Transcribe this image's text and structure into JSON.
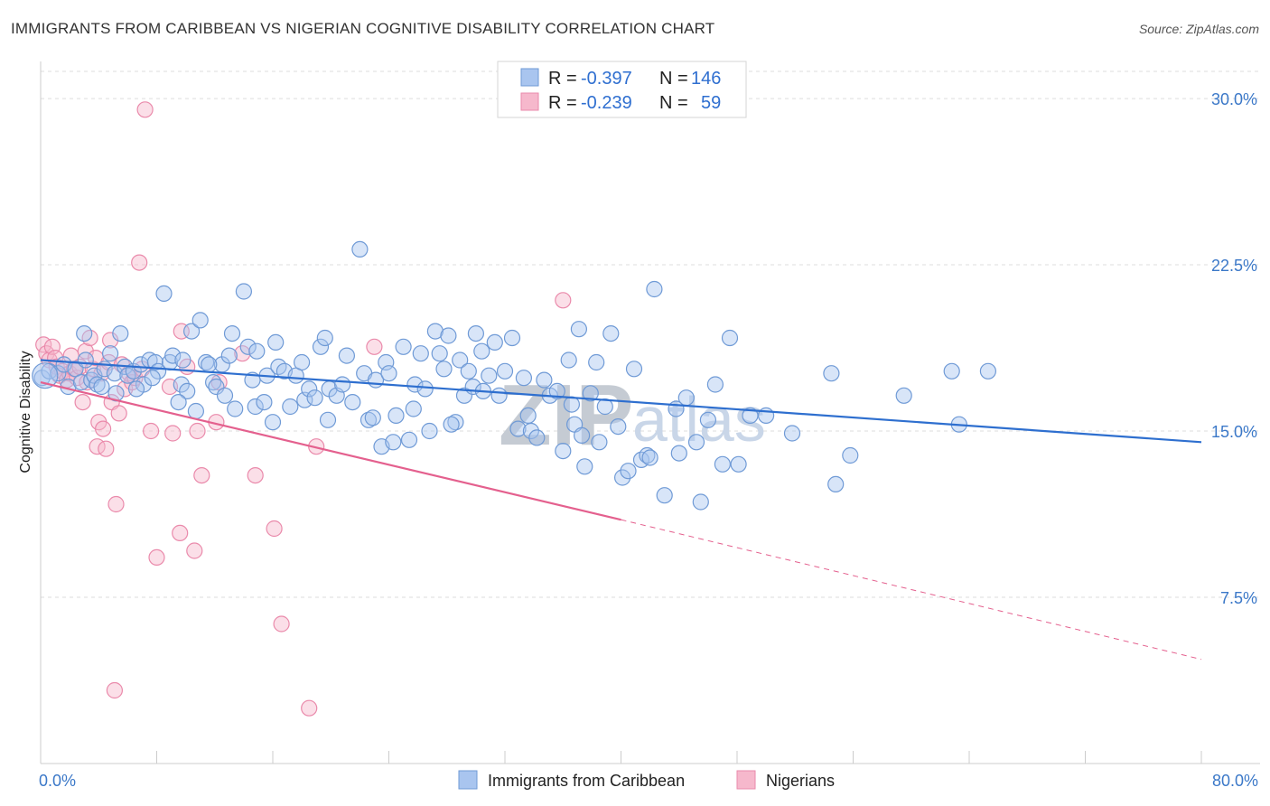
{
  "title": "IMMIGRANTS FROM CARIBBEAN VS NIGERIAN COGNITIVE DISABILITY CORRELATION CHART",
  "source": "Source: ZipAtlas.com",
  "watermark": {
    "zip": "ZIP",
    "atlas": "atlas"
  },
  "colors": {
    "blue_fill": "#a9c5ef",
    "blue_stroke": "#6f9ad6",
    "blue_line": "#2e6fcf",
    "pink_fill": "#f6b8cc",
    "pink_stroke": "#ea8aab",
    "pink_line": "#e4608e",
    "tick_text": "#3b78c8",
    "grid": "#dddddd"
  },
  "legend": {
    "rows": [
      {
        "r_label": "R =",
        "r_value": "-0.397",
        "n_label": "N =",
        "n_value": "146"
      },
      {
        "r_label": "R =",
        "r_value": "-0.239",
        "n_label": "N =",
        "n_value": "59"
      }
    ]
  },
  "bottom_legend": [
    "Immigrants from Caribbean",
    "Nigerians"
  ],
  "chart_data": {
    "type": "scatter",
    "ylabel": "Cognitive Disability",
    "xlim": [
      0,
      80
    ],
    "ylim": [
      0,
      32
    ],
    "y_ticks": [
      {
        "value": 7.5,
        "label": "7.5%"
      },
      {
        "value": 15.0,
        "label": "15.0%"
      },
      {
        "value": 22.5,
        "label": "22.5%"
      },
      {
        "value": 30.0,
        "label": "30.0%"
      }
    ],
    "x_tick_labels": [
      {
        "value": 0,
        "label": "0.0%"
      },
      {
        "value": 80,
        "label": "80.0%"
      }
    ],
    "x_minor_ticks": [
      0,
      8,
      16,
      24,
      32,
      40,
      48,
      56,
      64,
      72,
      80
    ],
    "grid": true,
    "series": [
      {
        "name": "Immigrants from Caribbean",
        "r": -0.397,
        "n": 146,
        "trend": {
          "x0": 0,
          "y0": 18.2,
          "x1": 80,
          "y1": 14.5
        },
        "points": [
          [
            0.1,
            17.4
          ],
          [
            0.6,
            17.7
          ],
          [
            1.2,
            17.6
          ],
          [
            1.6,
            18.0
          ],
          [
            1.9,
            17.0
          ],
          [
            2.4,
            17.8
          ],
          [
            2.8,
            17.2
          ],
          [
            3.1,
            18.2
          ],
          [
            3.0,
            19.4
          ],
          [
            3.5,
            17.3
          ],
          [
            3.7,
            17.5
          ],
          [
            3.9,
            17.1
          ],
          [
            4.2,
            17.0
          ],
          [
            4.4,
            17.8
          ],
          [
            5.1,
            17.6
          ],
          [
            5.2,
            16.7
          ],
          [
            5.5,
            19.4
          ],
          [
            5.8,
            17.9
          ],
          [
            6.0,
            17.5
          ],
          [
            6.4,
            17.7
          ],
          [
            6.9,
            18.0
          ],
          [
            7.1,
            17.1
          ],
          [
            7.5,
            18.2
          ],
          [
            7.9,
            18.1
          ],
          [
            8.1,
            17.7
          ],
          [
            8.5,
            21.2
          ],
          [
            8.9,
            18.1
          ],
          [
            9.1,
            18.4
          ],
          [
            9.7,
            17.1
          ],
          [
            9.8,
            18.2
          ],
          [
            10.1,
            16.8
          ],
          [
            10.4,
            19.5
          ],
          [
            10.7,
            15.9
          ],
          [
            11.0,
            20.0
          ],
          [
            11.4,
            18.1
          ],
          [
            11.9,
            17.2
          ],
          [
            12.1,
            17.0
          ],
          [
            12.5,
            18.0
          ],
          [
            13.0,
            18.4
          ],
          [
            13.2,
            19.4
          ],
          [
            13.4,
            16.0
          ],
          [
            14.0,
            21.3
          ],
          [
            14.3,
            18.8
          ],
          [
            14.8,
            16.1
          ],
          [
            14.9,
            18.6
          ],
          [
            15.4,
            16.3
          ],
          [
            15.6,
            17.5
          ],
          [
            16.0,
            15.4
          ],
          [
            16.4,
            17.9
          ],
          [
            16.8,
            17.7
          ],
          [
            17.2,
            16.1
          ],
          [
            17.6,
            17.5
          ],
          [
            18.0,
            18.1
          ],
          [
            18.2,
            16.4
          ],
          [
            18.5,
            16.9
          ],
          [
            18.9,
            16.5
          ],
          [
            19.3,
            18.8
          ],
          [
            19.6,
            19.2
          ],
          [
            19.9,
            16.9
          ],
          [
            20.4,
            16.6
          ],
          [
            20.8,
            17.1
          ],
          [
            21.1,
            18.4
          ],
          [
            21.5,
            16.3
          ],
          [
            22.0,
            23.2
          ],
          [
            22.3,
            17.6
          ],
          [
            22.6,
            15.5
          ],
          [
            23.1,
            17.3
          ],
          [
            23.5,
            14.3
          ],
          [
            23.8,
            18.1
          ],
          [
            24.0,
            17.6
          ],
          [
            24.3,
            14.5
          ],
          [
            24.5,
            15.7
          ],
          [
            25.0,
            18.8
          ],
          [
            25.4,
            14.6
          ],
          [
            25.8,
            17.1
          ],
          [
            26.2,
            18.5
          ],
          [
            26.5,
            16.9
          ],
          [
            26.8,
            15.0
          ],
          [
            27.2,
            19.5
          ],
          [
            27.5,
            18.5
          ],
          [
            27.8,
            17.8
          ],
          [
            28.1,
            19.3
          ],
          [
            28.6,
            15.4
          ],
          [
            28.9,
            18.2
          ],
          [
            29.2,
            16.6
          ],
          [
            29.5,
            17.7
          ],
          [
            30.0,
            19.4
          ],
          [
            30.4,
            18.6
          ],
          [
            30.9,
            17.5
          ],
          [
            31.3,
            19.0
          ],
          [
            31.6,
            16.6
          ],
          [
            32.0,
            17.7
          ],
          [
            32.5,
            19.2
          ],
          [
            32.9,
            15.1
          ],
          [
            33.3,
            17.4
          ],
          [
            33.8,
            15.0
          ],
          [
            34.2,
            14.7
          ],
          [
            34.7,
            17.3
          ],
          [
            35.1,
            16.6
          ],
          [
            35.6,
            16.8
          ],
          [
            36.0,
            14.1
          ],
          [
            36.4,
            18.2
          ],
          [
            36.8,
            15.3
          ],
          [
            37.1,
            19.6
          ],
          [
            37.5,
            13.4
          ],
          [
            37.9,
            16.7
          ],
          [
            38.3,
            18.1
          ],
          [
            38.9,
            16.1
          ],
          [
            39.3,
            19.4
          ],
          [
            39.8,
            15.2
          ],
          [
            40.1,
            12.9
          ],
          [
            40.5,
            13.2
          ],
          [
            40.9,
            17.8
          ],
          [
            41.4,
            13.7
          ],
          [
            41.8,
            13.9
          ],
          [
            42.3,
            21.4
          ],
          [
            43.0,
            12.1
          ],
          [
            44.5,
            16.5
          ],
          [
            45.2,
            14.5
          ],
          [
            45.5,
            11.8
          ],
          [
            46.0,
            15.5
          ],
          [
            46.5,
            17.1
          ],
          [
            47.0,
            13.5
          ],
          [
            47.5,
            19.2
          ],
          [
            48.1,
            13.5
          ],
          [
            48.9,
            15.7
          ],
          [
            50.0,
            15.7
          ],
          [
            51.8,
            14.9
          ],
          [
            54.5,
            17.6
          ],
          [
            54.8,
            12.6
          ],
          [
            55.8,
            13.9
          ],
          [
            59.5,
            16.6
          ],
          [
            62.8,
            17.7
          ],
          [
            63.3,
            15.3
          ],
          [
            65.3,
            17.7
          ],
          [
            37.3,
            14.8
          ],
          [
            42.0,
            13.8
          ],
          [
            33.6,
            15.7
          ],
          [
            19.8,
            15.5
          ],
          [
            6.6,
            16.9
          ],
          [
            11.6,
            18.0
          ],
          [
            22.9,
            15.6
          ],
          [
            25.7,
            16.0
          ],
          [
            28.3,
            15.3
          ],
          [
            12.7,
            16.6
          ],
          [
            9.5,
            16.3
          ],
          [
            4.8,
            18.5
          ],
          [
            16.2,
            19.0
          ],
          [
            29.8,
            17.0
          ],
          [
            36.6,
            16.2
          ],
          [
            43.8,
            16.0
          ],
          [
            44.0,
            14.0
          ],
          [
            38.5,
            14.5
          ],
          [
            30.5,
            16.8
          ],
          [
            14.6,
            17.3
          ],
          [
            7.7,
            17.4
          ]
        ]
      },
      {
        "name": "Nigerians",
        "r": -0.239,
        "n": 59,
        "trend": {
          "x0": 0,
          "y0": 17.2,
          "x1": 40,
          "y1": 11.0,
          "dash_x1": 80,
          "dash_y1": 4.7
        },
        "points": [
          [
            0.2,
            18.9
          ],
          [
            0.4,
            18.5
          ],
          [
            0.6,
            18.2
          ],
          [
            0.8,
            18.8
          ],
          [
            1.0,
            18.3
          ],
          [
            1.1,
            17.9
          ],
          [
            1.3,
            17.5
          ],
          [
            1.5,
            17.7
          ],
          [
            1.8,
            17.3
          ],
          [
            2.0,
            17.6
          ],
          [
            2.1,
            18.4
          ],
          [
            2.3,
            17.8
          ],
          [
            2.5,
            17.4
          ],
          [
            2.7,
            17.9
          ],
          [
            2.9,
            16.3
          ],
          [
            3.1,
            18.6
          ],
          [
            3.2,
            17.2
          ],
          [
            3.4,
            19.2
          ],
          [
            3.6,
            17.8
          ],
          [
            3.8,
            18.3
          ],
          [
            3.9,
            14.3
          ],
          [
            4.0,
            15.4
          ],
          [
            4.2,
            17.6
          ],
          [
            4.3,
            15.1
          ],
          [
            4.5,
            14.2
          ],
          [
            4.7,
            18.1
          ],
          [
            4.8,
            19.1
          ],
          [
            4.9,
            16.3
          ],
          [
            5.1,
            3.3
          ],
          [
            5.2,
            11.7
          ],
          [
            5.4,
            15.8
          ],
          [
            5.6,
            18.0
          ],
          [
            5.8,
            16.9
          ],
          [
            6.1,
            17.6
          ],
          [
            6.3,
            17.2
          ],
          [
            6.5,
            17.4
          ],
          [
            6.8,
            22.6
          ],
          [
            7.0,
            17.8
          ],
          [
            7.2,
            29.5
          ],
          [
            7.6,
            15.0
          ],
          [
            8.0,
            9.3
          ],
          [
            8.9,
            17.0
          ],
          [
            9.1,
            14.9
          ],
          [
            9.6,
            10.4
          ],
          [
            9.7,
            19.5
          ],
          [
            10.1,
            17.9
          ],
          [
            10.6,
            9.6
          ],
          [
            10.8,
            15.0
          ],
          [
            11.1,
            13.0
          ],
          [
            12.1,
            15.4
          ],
          [
            12.3,
            17.2
          ],
          [
            13.9,
            18.5
          ],
          [
            14.8,
            13.0
          ],
          [
            16.1,
            10.6
          ],
          [
            16.6,
            6.3
          ],
          [
            18.5,
            2.5
          ],
          [
            19.0,
            14.3
          ],
          [
            23.0,
            18.8
          ],
          [
            36.0,
            20.9
          ]
        ]
      }
    ]
  }
}
